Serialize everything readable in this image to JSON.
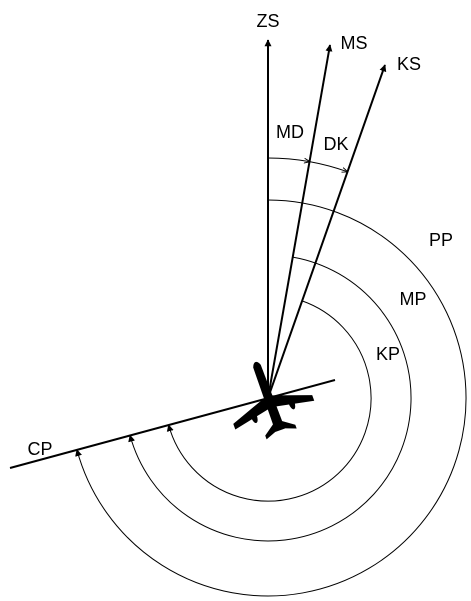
{
  "labels": {
    "zs": "ZS",
    "ms": "MS",
    "ks": "KS",
    "md": "MD",
    "dk": "DK",
    "pp": "PP",
    "mp": "MP",
    "kp": "KP",
    "cp": "CP"
  }
}
